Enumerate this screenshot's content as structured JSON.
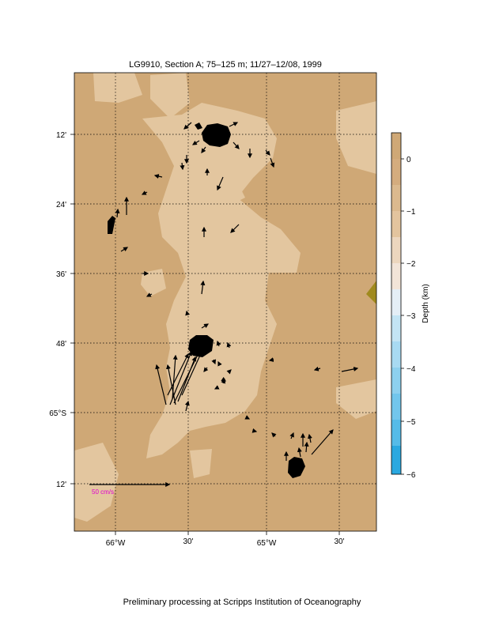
{
  "title": "LG9910, Section A; 75–125 m; 11/27–12/08, 1999",
  "footer": "Preliminary processing at Scripps Institution of Oceanography",
  "colorbar": {
    "label": "Depth (km)",
    "ticks": [
      "0",
      "−1",
      "−2",
      "−3",
      "−4",
      "−5",
      "−6"
    ],
    "colors": [
      "#cfa876",
      "#d4ac7e",
      "#e3c49e",
      "#f0e0cc",
      "#e8eef4",
      "#bfe0f0",
      "#8dd0ee",
      "#55bbe8",
      "#2aa8e0"
    ]
  },
  "axes": {
    "lat_labels": [
      "12'",
      "24'",
      "36'",
      "48'",
      "65°S",
      "12'"
    ],
    "lon_labels": [
      "66°W",
      "30'",
      "65°W",
      "30'"
    ]
  },
  "scale": {
    "label": "50 cm/s",
    "color": "#e000d0"
  },
  "colors": {
    "land_deep": "#cfa876",
    "shelf": "#e4c7a2",
    "land_tri": "#a08a1e"
  }
}
